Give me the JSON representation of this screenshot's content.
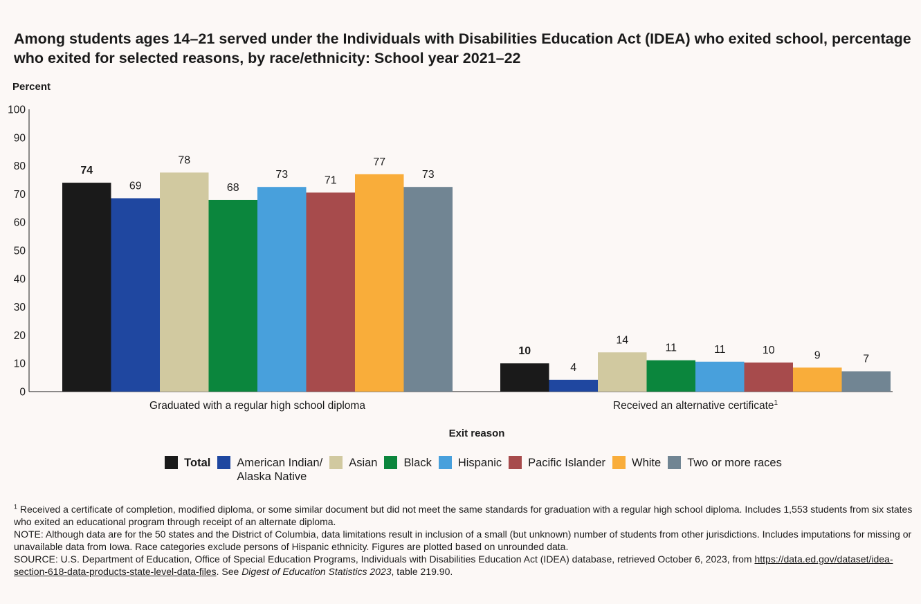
{
  "title": "Among students ages 14–21 served under the Individuals with Disabilities Education Act (IDEA) who exited school, percentage who exited for selected reasons, by race/ethnicity: School year 2021–22",
  "chart_data": {
    "type": "bar",
    "ylabel": "Percent",
    "xlabel": "Exit reason",
    "ylim": [
      0,
      100
    ],
    "yticks": [
      0,
      10,
      20,
      30,
      40,
      50,
      60,
      70,
      80,
      90,
      100
    ],
    "grid": false,
    "legend_position": "bottom",
    "categories": [
      "Graduated with a regular high school diploma",
      "Received an alternative certificate"
    ],
    "category_footnote_marks": [
      "",
      "1"
    ],
    "series": [
      {
        "name": "Total",
        "color": "#1a1a1a",
        "values": [
          74,
          10
        ],
        "display_values": [
          74,
          10
        ],
        "emphasis": true
      },
      {
        "name": "American Indian/ Alaska Native",
        "color": "#1f47a0",
        "values": [
          68.5,
          4.2
        ],
        "display_values": [
          69,
          4
        ],
        "emphasis": false
      },
      {
        "name": "Asian",
        "color": "#d1c9a0",
        "values": [
          77.6,
          13.9
        ],
        "display_values": [
          78,
          14
        ],
        "emphasis": false
      },
      {
        "name": "Black",
        "color": "#0b863d",
        "values": [
          67.9,
          11.1
        ],
        "display_values": [
          68,
          11
        ],
        "emphasis": false
      },
      {
        "name": "Hispanic",
        "color": "#48a0dc",
        "values": [
          72.5,
          10.6
        ],
        "display_values": [
          73,
          11
        ],
        "emphasis": false
      },
      {
        "name": "Pacific Islander",
        "color": "#a74b4c",
        "values": [
          70.5,
          10.3
        ],
        "display_values": [
          71,
          10
        ],
        "emphasis": false
      },
      {
        "name": "White",
        "color": "#f9ad3a",
        "values": [
          77.0,
          8.5
        ],
        "display_values": [
          77,
          9
        ],
        "emphasis": false
      },
      {
        "name": "Two or more races",
        "color": "#718593",
        "values": [
          72.5,
          7.2
        ],
        "display_values": [
          73,
          7
        ],
        "emphasis": false
      }
    ]
  },
  "legend": {
    "total": "Total",
    "aian_line1": "American Indian/",
    "aian_line2": "Alaska Native",
    "asian": "Asian",
    "black": "Black",
    "hispanic": "Hispanic",
    "pacific": "Pacific Islander",
    "white": "White",
    "two_or_more": "Two or more races"
  },
  "notes": {
    "footnote_mark": "1",
    "footnote": " Received a certificate of completion, modified diploma, or some similar document but did not meet the same standards for graduation with a regular high school diploma. Includes 1,553 students from six states who exited an educational program through receipt of an alternate diploma.",
    "note": "NOTE: Although data are for the 50 states and the District of Columbia, data limitations result in inclusion of a small (but unknown) number of students from other jurisdictions. Includes imputations for missing or unavailable data from Iowa. Race categories exclude persons of Hispanic ethnicity. Figures are plotted based on unrounded data.",
    "source_prefix": "SOURCE: U.S. Department of Education, Office of Special Education Programs, Individuals with Disabilities Education Act (IDEA) database, retrieved October 6, 2023, from ",
    "source_link": "https://data.ed.gov/dataset/idea-section-618-data-products-state-level-data-files",
    "source_mid": ". See ",
    "source_pub": "Digest of Education Statistics 2023",
    "source_suffix": ", table 219.90."
  }
}
